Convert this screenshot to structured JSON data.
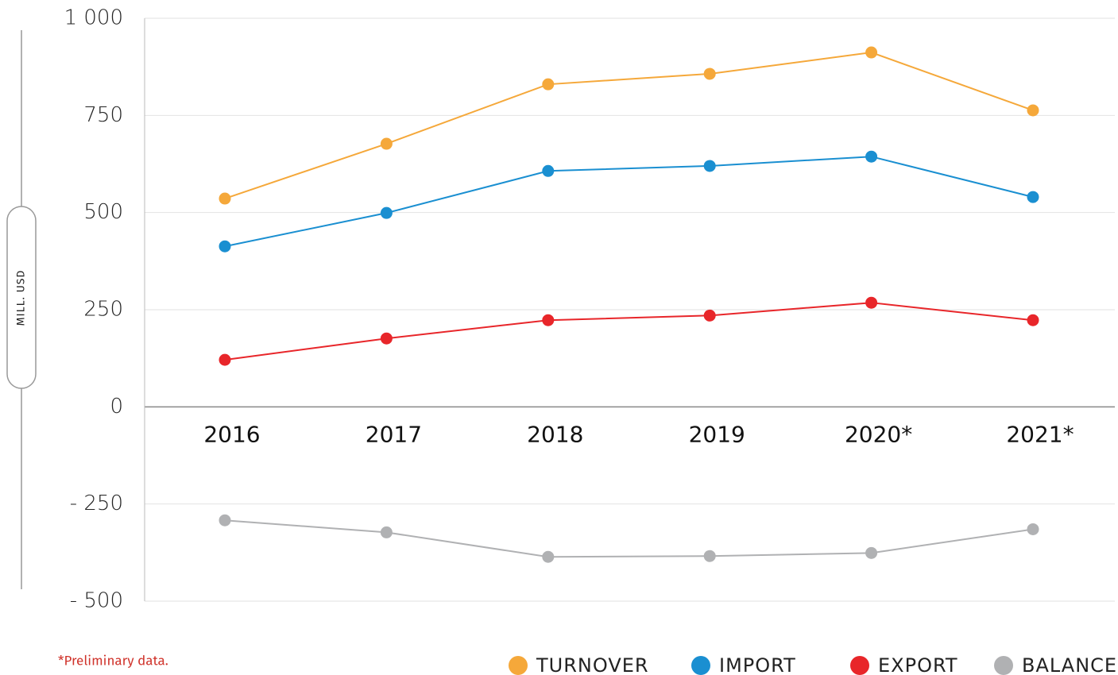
{
  "chart_data": {
    "type": "line",
    "y_axis_label": "MILL. USD",
    "note": "*Preliminary data.",
    "categories": [
      "2016",
      "2017",
      "2018",
      "2019",
      "2020*",
      "2021*"
    ],
    "series": [
      {
        "name": "TURNOVER",
        "color": "#f5a83a",
        "values": [
          536,
          677,
          830,
          857,
          912,
          763
        ]
      },
      {
        "name": "IMPORT",
        "color": "#1a8fd1",
        "values": [
          413,
          499,
          607,
          620,
          644,
          540
        ]
      },
      {
        "name": "EXPORT",
        "color": "#e8262a",
        "values": [
          121,
          176,
          223,
          235,
          268,
          223
        ]
      },
      {
        "name": "BALANCE",
        "color": "#b0b1b3",
        "values": [
          -292,
          -323,
          -386,
          -384,
          -376,
          -315
        ]
      }
    ],
    "ylim": [
      -500,
      1000
    ],
    "yticks": [
      {
        "value": 1000,
        "label": "1 000"
      },
      750,
      500,
      250,
      0,
      {
        "value": -250,
        "label": "- 250"
      },
      {
        "value": -500,
        "label": "- 500"
      }
    ],
    "grid": true
  }
}
